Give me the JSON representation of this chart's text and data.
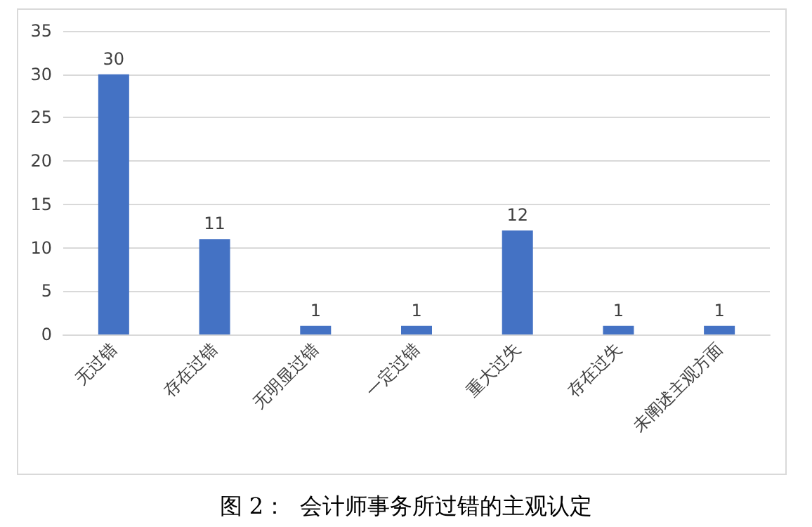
{
  "chart_data": {
    "type": "bar",
    "title": "图 2：  会计师事务所过错的主观认定",
    "categories": [
      "无过错",
      "存在过错",
      "无明显过错",
      "一定过错",
      "重大过失",
      "存在过失",
      "未阐述主观方面"
    ],
    "values": [
      30,
      11,
      1,
      1,
      12,
      1,
      1
    ],
    "color": "#4472c4",
    "ylim": [
      0,
      35
    ],
    "yticks": [
      0,
      5,
      10,
      15,
      20,
      25,
      30,
      35
    ],
    "grid": "y",
    "data_labels": true
  }
}
